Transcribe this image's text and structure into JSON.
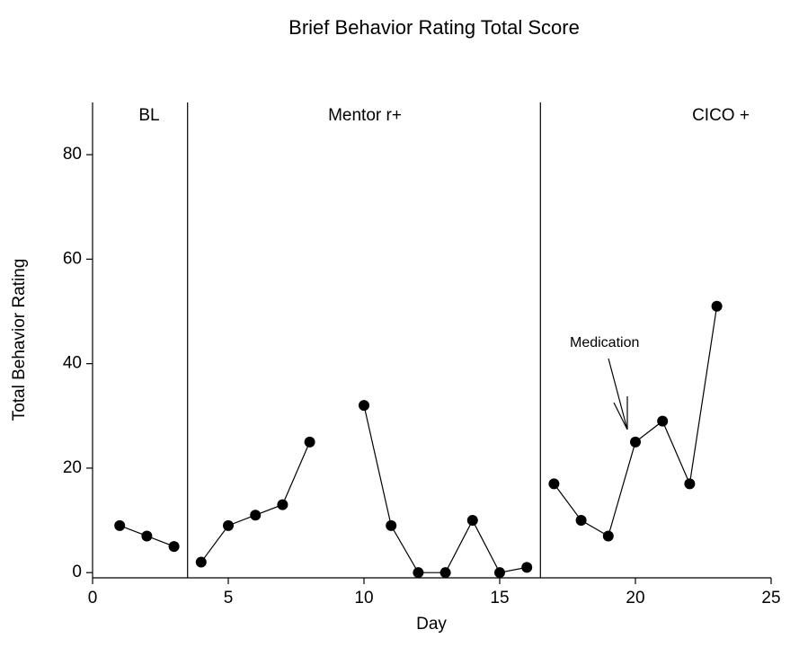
{
  "chart_data": {
    "type": "line",
    "title": "Brief Behavior Rating Total Score",
    "xlabel": "Day",
    "ylabel": "Total Behavior Rating",
    "x": [
      1,
      2,
      3,
      4,
      5,
      6,
      7,
      8,
      9,
      10,
      11,
      12,
      13,
      14,
      15,
      16,
      17,
      18,
      19,
      20,
      21,
      22,
      23
    ],
    "values": [
      9,
      7,
      5,
      2,
      9,
      11,
      13,
      25,
      null,
      32,
      9,
      0,
      0,
      10,
      0,
      1,
      17,
      10,
      7,
      25,
      29,
      17,
      51
    ],
    "color": "#000000",
    "xlim": [
      0,
      25
    ],
    "ylim": [
      -1,
      90
    ],
    "xticks": [
      0,
      5,
      10,
      15,
      20,
      25
    ],
    "yticks": [
      0,
      20,
      40,
      60,
      80
    ],
    "phase_lines": [
      3.5,
      16.5
    ],
    "phase_labels": [
      "BL",
      "Mentor r+",
      "CICO +"
    ],
    "annotation": "Medication"
  }
}
